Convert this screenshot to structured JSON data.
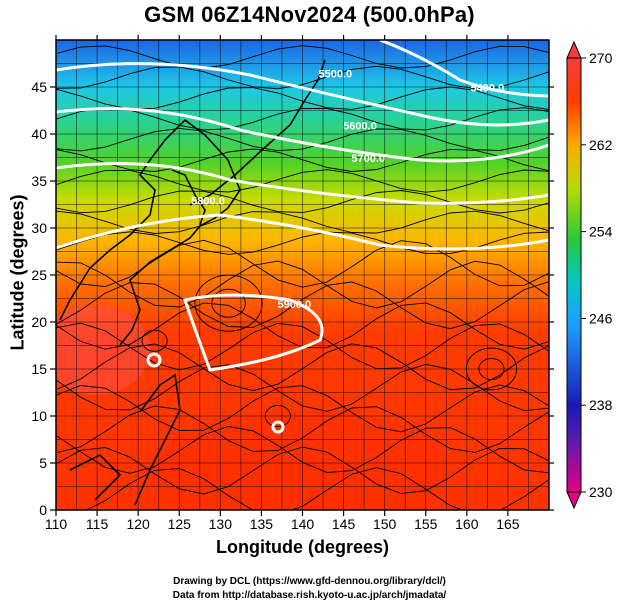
{
  "title": "GSM 06Z14Nov2024 (500.0hPa)",
  "xlabel": "Longitude (degrees)",
  "ylabel": "Latitude  (degrees)",
  "credits": [
    "Drawing by DCL (https://www.gfd-dennou.org/library/dcl/)",
    "Data from http://database.rish.kyoto-u.ac.jp/arch/jmadata/"
  ],
  "map_data": {
    "lon_range": [
      110,
      170
    ],
    "lat_range": [
      0,
      50
    ],
    "x_ticks": [
      "110",
      "115",
      "120",
      "125",
      "130",
      "135",
      "140",
      "145",
      "150",
      "155",
      "160",
      "165"
    ],
    "y_ticks": [
      "0",
      "5",
      "10",
      "15",
      "20",
      "25",
      "30",
      "35",
      "40",
      "45"
    ],
    "colorbar": {
      "labels": [
        "270",
        "262",
        "254",
        "246",
        "238",
        "230"
      ],
      "range": [
        230,
        270
      ],
      "colors": [
        "#e5007f",
        "#1a1ab4",
        "#1e9bff",
        "#00c8c8",
        "#28c83c",
        "#b4dc00",
        "#ffaa00",
        "#ff3c00",
        "#ff3c3c"
      ]
    },
    "contours": [
      {
        "label": "5400.0",
        "lon": 162.5,
        "lat": 44.5
      },
      {
        "label": "5500.0",
        "lon": 144,
        "lat": 46
      },
      {
        "label": "5600.0",
        "lon": 147,
        "lat": 40.5
      },
      {
        "label": "5700.0",
        "lon": 148,
        "lat": 37
      },
      {
        "label": "5800.0",
        "lon": 128.5,
        "lat": 32.5
      },
      {
        "label": "5900.0",
        "lon": 139,
        "lat": 21.5
      }
    ]
  }
}
